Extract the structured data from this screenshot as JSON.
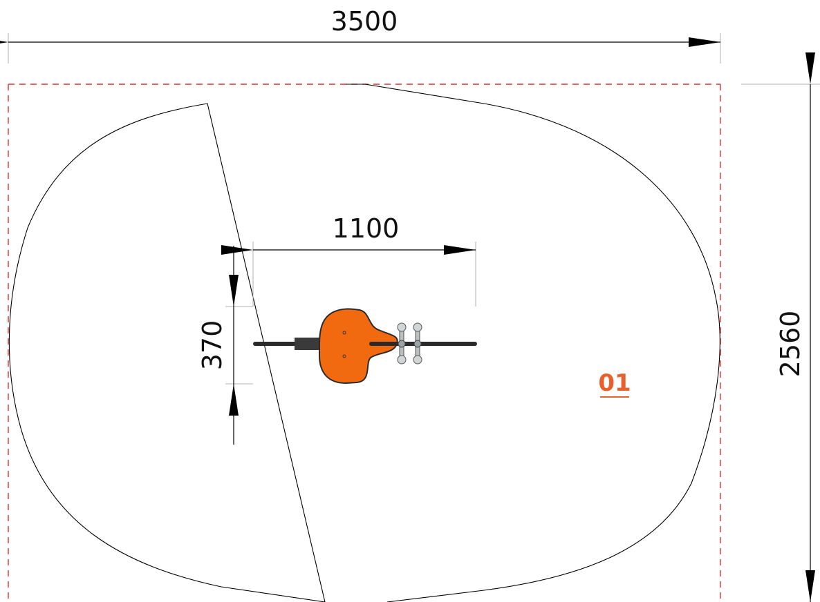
{
  "dimensions": {
    "width_total": "3500",
    "height_total": "2560",
    "equipment_length": "1100",
    "equipment_width": "370"
  },
  "equipment": {
    "number": "01"
  },
  "colors": {
    "safety_zone_outline": "#000000",
    "boundary_dashed": "#e03030",
    "equipment_orange": "#f26a10",
    "label_orange": "#e8602c",
    "dimension_line": "#000000",
    "extension_line": "#b0b0b0"
  }
}
